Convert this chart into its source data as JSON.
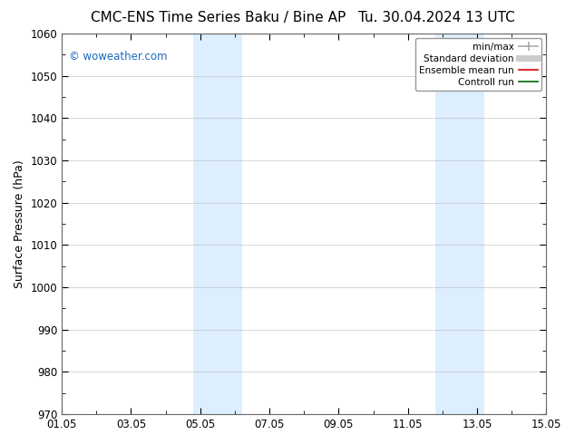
{
  "title_left": "CMC-ENS Time Series Baku / Bine AP",
  "title_right": "Tu. 30.04.2024 13 UTC",
  "ylabel": "Surface Pressure (hPa)",
  "xlabel": "",
  "ylim": [
    970,
    1060
  ],
  "yticks": [
    970,
    980,
    990,
    1000,
    1010,
    1020,
    1030,
    1040,
    1050,
    1060
  ],
  "xlim_start": 0,
  "xlim_end": 14,
  "xtick_labels": [
    "01.05",
    "03.05",
    "05.05",
    "07.05",
    "09.05",
    "11.05",
    "13.05",
    "15.05"
  ],
  "xtick_positions": [
    0,
    2,
    4,
    6,
    8,
    10,
    12,
    14
  ],
  "shaded_bands": [
    {
      "x_start": 3.8,
      "x_end": 5.2
    },
    {
      "x_start": 10.8,
      "x_end": 12.2
    }
  ],
  "shaded_color": "#ddeeff",
  "background_color": "#ffffff",
  "watermark_text": "© woweather.com",
  "watermark_color": "#1a6bbf",
  "legend_items": [
    {
      "label": "min/max",
      "color": "#aaaaaa",
      "lw": 1.2
    },
    {
      "label": "Standard deviation",
      "color": "#cccccc",
      "lw": 5
    },
    {
      "label": "Ensemble mean run",
      "color": "#dd0000",
      "lw": 1.2
    },
    {
      "label": "Controll run",
      "color": "#006600",
      "lw": 1.2
    }
  ],
  "grid_color": "#bbbbbb",
  "grid_alpha": 0.7,
  "title_fontsize": 11,
  "axis_label_fontsize": 9,
  "tick_fontsize": 8.5,
  "legend_fontsize": 7.5
}
